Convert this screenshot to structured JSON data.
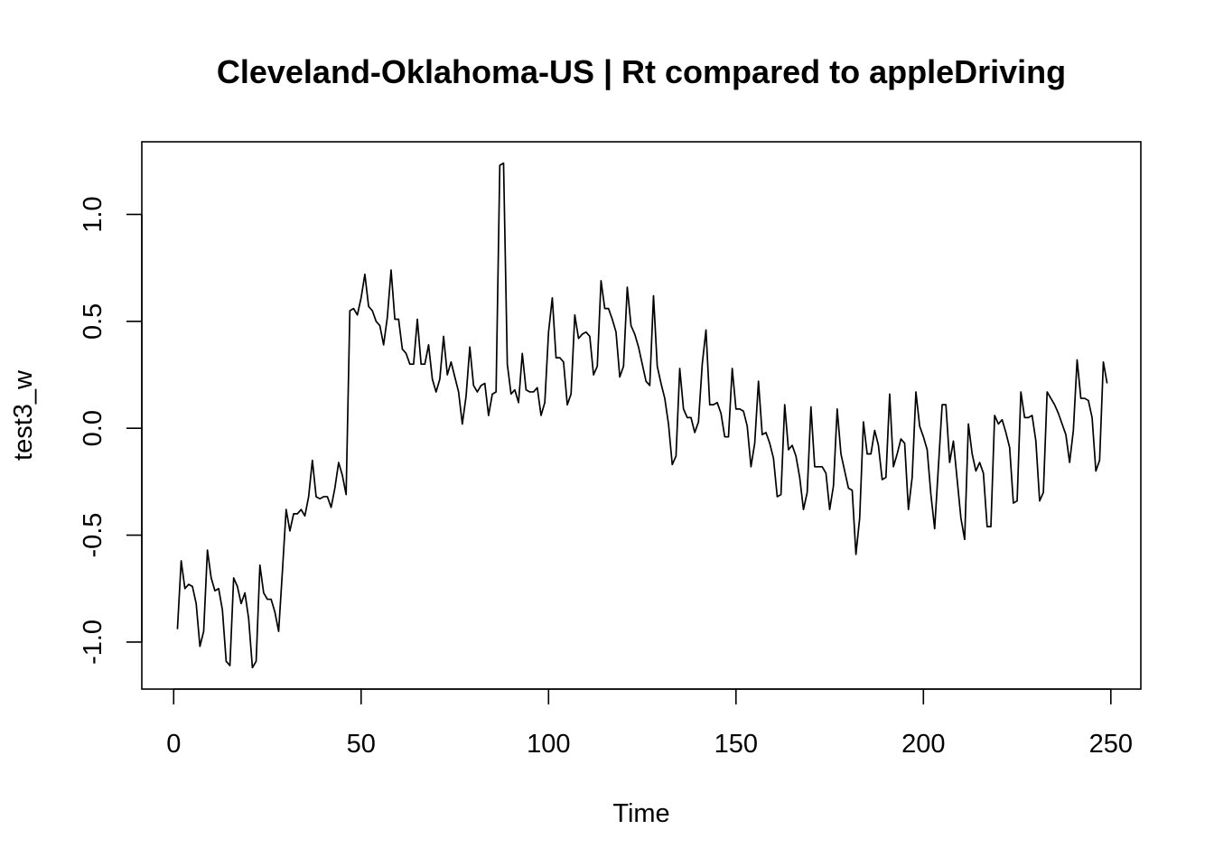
{
  "chart_data": {
    "type": "line",
    "title": "Cleveland-Oklahoma-US | Rt compared to appleDriving",
    "xlabel": "Time",
    "ylabel": "test3_w",
    "xlim": [
      -8.5,
      258
    ],
    "ylim": [
      -1.22,
      1.34
    ],
    "x_ticks": [
      0,
      50,
      100,
      150,
      200,
      250
    ],
    "x_tick_labels": [
      "0",
      "50",
      "100",
      "150",
      "200",
      "250"
    ],
    "y_ticks": [
      -1.0,
      -0.5,
      0.0,
      0.5,
      1.0
    ],
    "y_tick_labels": [
      "-1.0",
      "-0.5",
      "0.0",
      "0.5",
      "1.0"
    ],
    "grid": false,
    "legend": "none",
    "line_color": "#000000",
    "series": [
      {
        "x_start": 1,
        "x_step": 1,
        "values": [
          -0.94,
          -0.62,
          -0.75,
          -0.73,
          -0.74,
          -0.82,
          -1.02,
          -0.95,
          -0.57,
          -0.7,
          -0.76,
          -0.75,
          -0.85,
          -1.09,
          -1.11,
          -0.7,
          -0.74,
          -0.82,
          -0.77,
          -0.89,
          -1.12,
          -1.09,
          -0.64,
          -0.77,
          -0.8,
          -0.8,
          -0.86,
          -0.95,
          -0.67,
          -0.38,
          -0.48,
          -0.4,
          -0.4,
          -0.38,
          -0.41,
          -0.32,
          -0.15,
          -0.32,
          -0.33,
          -0.32,
          -0.32,
          -0.37,
          -0.28,
          -0.16,
          -0.22,
          -0.31,
          0.55,
          0.56,
          0.53,
          0.61,
          0.72,
          0.57,
          0.55,
          0.5,
          0.48,
          0.39,
          0.52,
          0.74,
          0.51,
          0.51,
          0.37,
          0.35,
          0.3,
          0.3,
          0.51,
          0.3,
          0.3,
          0.39,
          0.23,
          0.17,
          0.23,
          0.43,
          0.25,
          0.31,
          0.24,
          0.17,
          0.02,
          0.15,
          0.38,
          0.2,
          0.17,
          0.2,
          0.21,
          0.06,
          0.16,
          0.17,
          1.23,
          1.24,
          0.3,
          0.16,
          0.18,
          0.12,
          0.35,
          0.18,
          0.17,
          0.17,
          0.19,
          0.06,
          0.12,
          0.45,
          0.61,
          0.33,
          0.33,
          0.31,
          0.11,
          0.16,
          0.53,
          0.42,
          0.44,
          0.45,
          0.43,
          0.25,
          0.29,
          0.69,
          0.56,
          0.56,
          0.51,
          0.45,
          0.24,
          0.29,
          0.66,
          0.48,
          0.44,
          0.38,
          0.3,
          0.22,
          0.2,
          0.62,
          0.29,
          0.21,
          0.14,
          0.02,
          -0.17,
          -0.13,
          0.28,
          0.09,
          0.05,
          0.05,
          -0.02,
          0.03,
          0.3,
          0.46,
          0.11,
          0.11,
          0.12,
          0.07,
          -0.04,
          -0.04,
          0.28,
          0.09,
          0.09,
          0.08,
          0.01,
          -0.18,
          -0.07,
          0.22,
          -0.03,
          -0.02,
          -0.07,
          -0.14,
          -0.32,
          -0.31,
          0.11,
          -0.1,
          -0.08,
          -0.13,
          -0.23,
          -0.38,
          -0.3,
          0.1,
          -0.18,
          -0.18,
          -0.18,
          -0.21,
          -0.38,
          -0.27,
          0.09,
          -0.12,
          -0.2,
          -0.28,
          -0.29,
          -0.59,
          -0.42,
          0.03,
          -0.12,
          -0.12,
          -0.01,
          -0.08,
          -0.24,
          -0.23,
          0.16,
          -0.18,
          -0.12,
          -0.05,
          -0.07,
          -0.38,
          -0.23,
          0.17,
          0.01,
          -0.04,
          -0.1,
          -0.31,
          -0.47,
          -0.18,
          0.11,
          0.11,
          -0.16,
          -0.06,
          -0.24,
          -0.42,
          -0.52,
          0.02,
          -0.12,
          -0.2,
          -0.16,
          -0.21,
          -0.46,
          -0.46,
          0.06,
          0.02,
          0.04,
          -0.02,
          -0.09,
          -0.35,
          -0.34,
          0.17,
          0.05,
          0.05,
          0.06,
          -0.06,
          -0.34,
          -0.3,
          0.17,
          0.14,
          0.11,
          0.07,
          0.02,
          -0.03,
          -0.16,
          -0.01,
          0.32,
          0.14,
          0.14,
          0.13,
          0.05,
          -0.2,
          -0.15,
          0.31,
          0.21
        ]
      }
    ]
  }
}
